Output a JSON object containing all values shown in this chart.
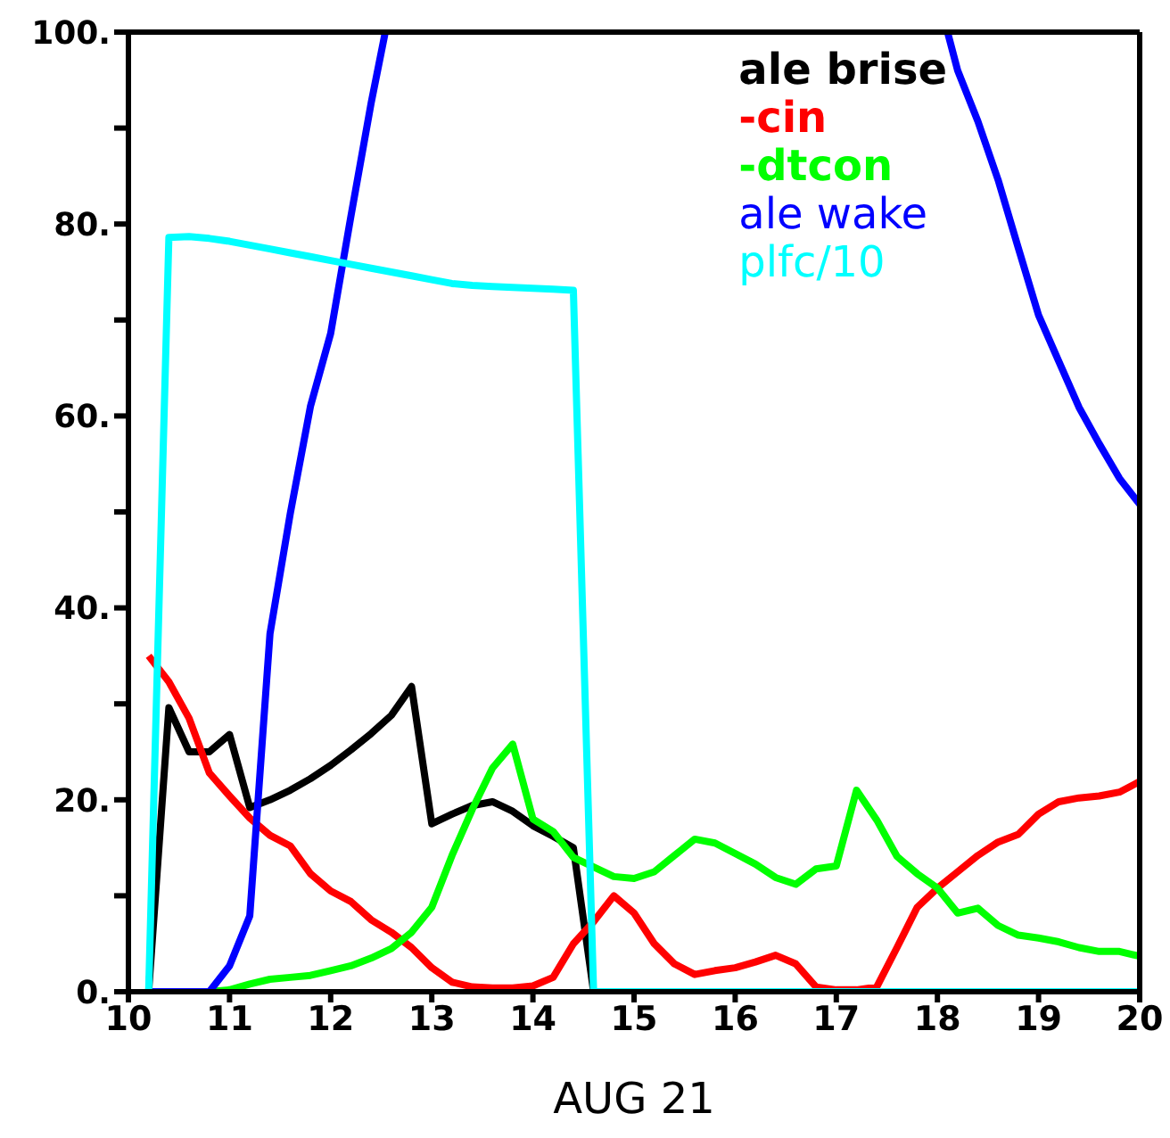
{
  "chart_data": {
    "type": "line",
    "xlabel": "AUG 21",
    "x": [
      10.2,
      10.4,
      10.6,
      10.8,
      11.0,
      11.2,
      11.4,
      11.6,
      11.8,
      12.0,
      12.2,
      12.4,
      12.6,
      12.8,
      13.0,
      13.2,
      13.4,
      13.6,
      13.8,
      14.0,
      14.2,
      14.4,
      14.6,
      14.8,
      15.0,
      15.2,
      15.4,
      15.6,
      15.8,
      16.0,
      16.2,
      16.4,
      16.6,
      16.8,
      17.0,
      17.2,
      17.4,
      17.6,
      17.8,
      18.0,
      18.2,
      18.4,
      18.6,
      18.8,
      19.0,
      19.2,
      19.4,
      19.6,
      19.8,
      20.0
    ],
    "xlim": [
      10,
      20
    ],
    "xticks": [
      10,
      11,
      12,
      13,
      14,
      15,
      16,
      17,
      18,
      19,
      20
    ],
    "ylim": [
      0,
      100
    ],
    "yticks": [
      {
        "value": 0,
        "label": "0."
      },
      {
        "value": 10,
        "label": null
      },
      {
        "value": 20,
        "label": "20."
      },
      {
        "value": 30,
        "label": null
      },
      {
        "value": 40,
        "label": "40."
      },
      {
        "value": 50,
        "label": null
      },
      {
        "value": 60,
        "label": "60."
      },
      {
        "value": 70,
        "label": null
      },
      {
        "value": 80,
        "label": "80."
      },
      {
        "value": 90,
        "label": null
      },
      {
        "value": 100,
        "label": "100."
      }
    ],
    "legend": "top right",
    "series": [
      {
        "name": "ale brise",
        "color": "#000000",
        "values": [
          0,
          29.6,
          25,
          25,
          26.8,
          19.2,
          20,
          21,
          22.2,
          23.6,
          25.2,
          26.9,
          28.8,
          31.8,
          17.5,
          18.5,
          19.4,
          19.8,
          18.8,
          17.3,
          16.2,
          15,
          0,
          null,
          null,
          null,
          null,
          null,
          null,
          null,
          null,
          null,
          null,
          null,
          null,
          null,
          null,
          null,
          null,
          null,
          null,
          null,
          null,
          null,
          null,
          null,
          null,
          null,
          null,
          null
        ]
      },
      {
        "name": "-cin",
        "color": "#ff0000",
        "values": [
          35,
          32.3,
          28.5,
          22.8,
          20.4,
          18.1,
          16.3,
          15.2,
          12.3,
          10.5,
          9.4,
          7.5,
          6.2,
          4.6,
          2.5,
          1,
          0.5,
          0.4,
          0.4,
          0.6,
          1.5,
          5,
          7.3,
          10,
          8.2,
          5,
          2.9,
          1.8,
          2.2,
          2.5,
          3.1,
          3.8,
          2.9,
          0.5,
          0.2,
          0.2,
          0.5,
          4.6,
          8.8,
          10.8,
          12.5,
          14.2,
          15.6,
          16.4,
          18.5,
          19.8,
          20.2,
          20.4,
          20.8,
          21.9
        ]
      },
      {
        "name": "-dtcon",
        "color": "#00ff00",
        "values": [
          null,
          null,
          null,
          0,
          0.2,
          0.8,
          1.3,
          1.5,
          1.7,
          2.2,
          2.7,
          3.5,
          4.5,
          6.2,
          8.8,
          14.2,
          19,
          23.3,
          25.8,
          18,
          16.7,
          14,
          13,
          12,
          11.8,
          12.5,
          14.2,
          15.9,
          15.5,
          14.4,
          13.3,
          11.9,
          11.2,
          12.8,
          13.1,
          21,
          17.9,
          14.1,
          12.3,
          10.8,
          8.2,
          8.7,
          6.9,
          5.9,
          5.6,
          5.2,
          4.6,
          4.2,
          4.2,
          3.7
        ]
      },
      {
        "name": "ale wake",
        "color": "#0000ff",
        "x": [
          10.2,
          10.4,
          10.6,
          10.8,
          11.0,
          11.2,
          11.4,
          11.6,
          11.8,
          12.0,
          12.2,
          12.4,
          12.54,
          15.0,
          18.1,
          18.2,
          18.4,
          18.6,
          18.8,
          19.0,
          19.2,
          19.4,
          19.6,
          19.8,
          20.0
        ],
        "values": [
          0,
          0,
          0,
          0,
          2.7,
          7.9,
          37.3,
          49.8,
          61,
          68.6,
          80.8,
          92.6,
          100,
          null,
          100,
          96,
          90.7,
          84.6,
          77.5,
          70.5,
          65.7,
          60.9,
          57.1,
          53.5,
          50.8
        ]
      },
      {
        "name": "plfc/10",
        "color": "#00ffff",
        "values": [
          0,
          78.6,
          78.7,
          78.5,
          78.2,
          77.8,
          77.4,
          77,
          76.6,
          76.2,
          75.8,
          75.4,
          75,
          74.6,
          74.2,
          73.8,
          73.6,
          73.5,
          73.4,
          73.3,
          73.2,
          73.1,
          0,
          0,
          0,
          0,
          0,
          0,
          0,
          0,
          0,
          0,
          0,
          0,
          0,
          0,
          0,
          0,
          0,
          0,
          0,
          0,
          0,
          0,
          0,
          0,
          0,
          0,
          0,
          0
        ]
      }
    ]
  }
}
